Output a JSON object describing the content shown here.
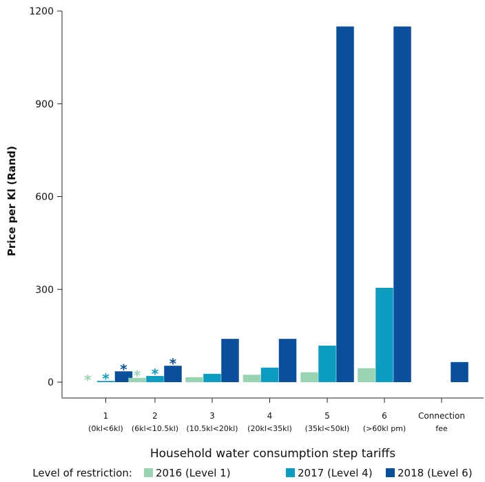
{
  "chart_data": {
    "type": "bar",
    "categories": [
      {
        "num": "1",
        "sub": "(0kl<6kl)"
      },
      {
        "num": "2",
        "sub": "(6kl<10.5kl)"
      },
      {
        "num": "3",
        "sub": "(10.5kl<20kl)"
      },
      {
        "num": "4",
        "sub": "(20kl<35kl)"
      },
      {
        "num": "5",
        "sub": "(35kl<50kl)"
      },
      {
        "num": "6",
        "sub": "(>60kl pm)"
      },
      {
        "num": "Connection",
        "sub": "fee"
      }
    ],
    "series": [
      {
        "name": "2016 (Level 1)",
        "color": "#99d4b2",
        "values": [
          0,
          14,
          16,
          24,
          32,
          45,
          null
        ]
      },
      {
        "name": "2017 (Level 4)",
        "color": "#0b9cc0",
        "values": [
          4,
          20,
          27,
          47,
          118,
          305,
          null
        ]
      },
      {
        "name": "2018 (Level 6)",
        "color": "#0a4f9c",
        "values": [
          35,
          53,
          140,
          140,
          1150,
          1150,
          65
        ]
      }
    ],
    "markers": [
      {
        "category_index": 0,
        "series_index": 0,
        "symbol": "*"
      },
      {
        "category_index": 0,
        "series_index": 1,
        "symbol": "*"
      },
      {
        "category_index": 0,
        "series_index": 2,
        "symbol": "*"
      },
      {
        "category_index": 1,
        "series_index": 0,
        "symbol": "*"
      },
      {
        "category_index": 1,
        "series_index": 1,
        "symbol": "*"
      },
      {
        "category_index": 1,
        "series_index": 2,
        "symbol": "*"
      }
    ],
    "xlabel": "Household water consumption step tariffs",
    "ylabel": "Price per Kl (Rand)",
    "yticks": [
      0,
      300,
      600,
      900,
      1200
    ],
    "ylim": [
      0,
      1200
    ],
    "legend_title": "Level of restriction:",
    "legend_position": "bottom",
    "grid": false
  }
}
